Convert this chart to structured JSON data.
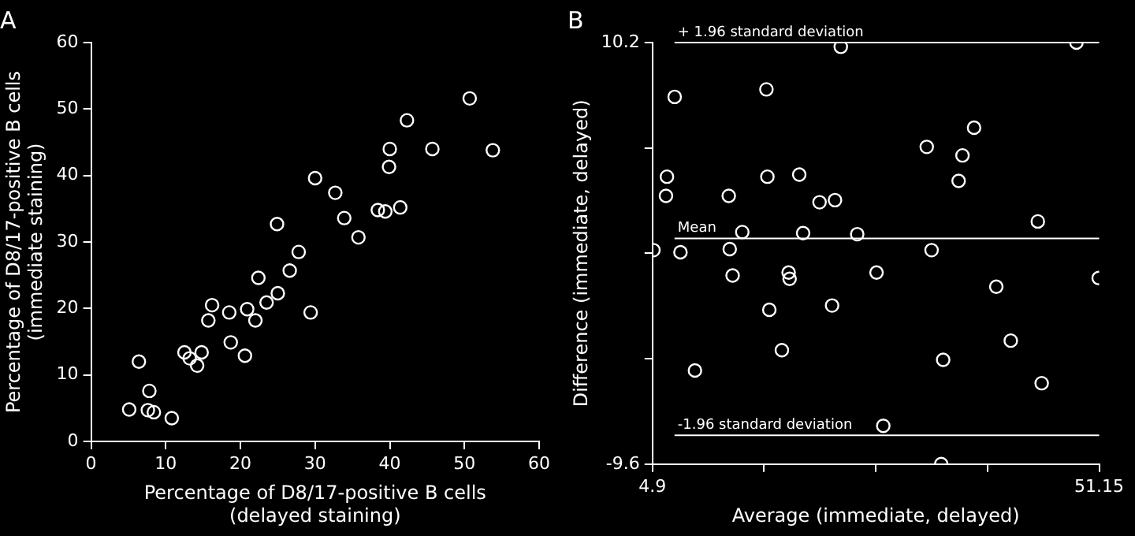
{
  "chart_data": [
    {
      "type": "scatter",
      "title": "A",
      "xlabel": "Percentage of D8/17-positive B cells\n(delayed staining)",
      "ylabel": "Percentage of D8/17-positive B cells\n(immediate staining)",
      "xlim": [
        0,
        60
      ],
      "ylim": [
        0,
        60
      ],
      "xticks": [
        0,
        10,
        20,
        30,
        40,
        50,
        60
      ],
      "yticks": [
        0,
        10,
        20,
        30,
        40,
        50,
        60
      ],
      "grid": false,
      "legend": false,
      "marker": "circle",
      "series": [
        {
          "color": "#ffffff",
          "x": [
            5.1,
            6.4,
            7.8,
            7.6,
            8.4,
            10.8,
            12.5,
            13.2,
            14.2,
            14.8,
            15.7,
            16.2,
            18.5,
            18.7,
            20.6,
            20.9,
            22.0,
            22.4,
            23.5,
            25.0,
            24.9,
            26.6,
            27.8,
            29.4,
            30.0,
            32.7,
            33.9,
            35.8,
            38.4,
            39.4,
            40.0,
            39.9,
            41.4,
            42.3,
            45.7,
            50.7,
            53.8
          ],
          "values": [
            4.8,
            12.0,
            7.6,
            4.7,
            4.4,
            3.5,
            13.4,
            12.5,
            11.4,
            13.4,
            18.2,
            20.5,
            19.4,
            14.9,
            12.9,
            19.9,
            18.2,
            24.6,
            20.9,
            22.3,
            32.7,
            25.7,
            28.5,
            19.4,
            39.6,
            37.4,
            33.6,
            30.7,
            34.8,
            34.6,
            44.0,
            41.3,
            35.2,
            48.3,
            44.0,
            51.6,
            43.8
          ]
        }
      ]
    },
    {
      "type": "scatter",
      "title": "B",
      "xlabel": "Average (immediate, delayed)",
      "ylabel": "Difference (immediate, delayed)",
      "xlim": [
        4.9,
        51.15
      ],
      "ylim": [
        -9.6,
        10.2
      ],
      "xticks": [
        4.9,
        {
          "value": 16.4625,
          "label": null
        },
        {
          "value": 28.025,
          "label": null
        },
        {
          "value": 39.5875,
          "label": null
        },
        51.15
      ],
      "yticks": [
        -9.6,
        {
          "value": -4.65,
          "label": null
        },
        {
          "value": 0.3,
          "label": null
        },
        {
          "value": 5.25,
          "label": null
        },
        10.2
      ],
      "grid": false,
      "legend": false,
      "marker": "circle",
      "ref_lines": [
        {
          "axis": "y",
          "value": 10.2,
          "label": "+ 1.96 standard deviation",
          "color": "#ffffff"
        },
        {
          "axis": "y",
          "value": 1.0,
          "label": "Mean",
          "color": "#ffffff"
        },
        {
          "axis": "y",
          "value": -8.25,
          "label": "-1.96 standard deviation",
          "color": "#ffffff"
        }
      ],
      "series": [
        {
          "color": "#ffffff",
          "x": [
            48.8,
            24.4,
            16.7,
            7.2,
            38.2,
            33.3,
            37.0,
            6.4,
            16.8,
            20.1,
            36.6,
            6.3,
            12.8,
            22.2,
            23.8,
            44.8,
            14.2,
            20.5,
            26.1,
            5.0,
            7.8,
            12.9,
            33.8,
            13.2,
            19.0,
            19.1,
            28.1,
            40.5,
            51.1,
            17.0,
            23.5,
            42.0,
            18.3,
            35.0,
            9.3,
            45.2,
            28.8,
            34.8
          ],
          "values": [
            10.2,
            10.0,
            8.0,
            7.65,
            6.2,
            5.3,
            4.9,
            3.9,
            3.9,
            4.0,
            3.7,
            3.0,
            3.0,
            2.7,
            2.8,
            1.8,
            1.3,
            1.25,
            1.2,
            0.45,
            0.35,
            0.5,
            0.45,
            -0.74,
            -0.6,
            -0.9,
            -0.6,
            -1.27,
            -0.86,
            -2.35,
            -2.15,
            -3.8,
            -4.25,
            -4.7,
            -5.2,
            -5.8,
            -7.8,
            -9.6
          ]
        }
      ]
    }
  ]
}
